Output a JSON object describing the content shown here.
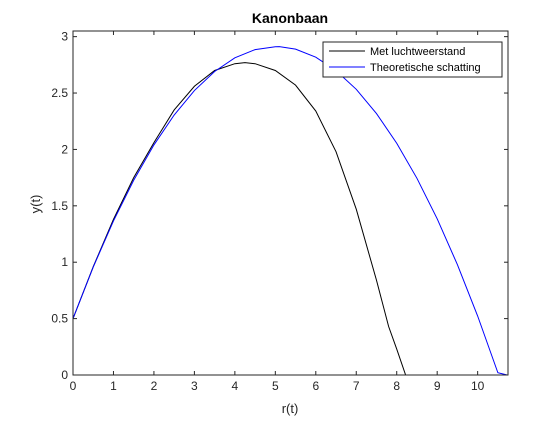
{
  "chart_data": {
    "type": "line",
    "title": "Kanonbaan",
    "xlabel": "r(t)",
    "ylabel": "y(t)",
    "xlim": [
      0,
      10.75
    ],
    "ylim": [
      0,
      3.05
    ],
    "xticks": [
      0,
      1,
      2,
      3,
      4,
      5,
      6,
      7,
      8,
      9,
      10
    ],
    "xtick_labels": [
      "0",
      "1",
      "2",
      "3",
      "4",
      "5",
      "6",
      "7",
      "8",
      "9",
      "10"
    ],
    "yticks": [
      0,
      0.5,
      1,
      1.5,
      2,
      2.5,
      3
    ],
    "ytick_labels": [
      "0",
      "0.5",
      "1",
      "1.5",
      "2",
      "2.5",
      "3"
    ],
    "grid": false,
    "legend_position": "top-right",
    "series": [
      {
        "name": "Met luchtweerstand",
        "color": "#000000",
        "x": [
          0,
          0.5,
          1,
          1.5,
          2,
          2.5,
          3,
          3.5,
          4,
          4.25,
          4.5,
          5,
          5.5,
          6,
          6.5,
          7,
          7.5,
          7.8,
          8,
          8.22
        ],
        "y": [
          0.5,
          0.96,
          1.38,
          1.75,
          2.06,
          2.35,
          2.56,
          2.7,
          2.76,
          2.77,
          2.76,
          2.7,
          2.57,
          2.34,
          1.98,
          1.47,
          0.84,
          0.43,
          0.23,
          0
        ]
      },
      {
        "name": "Theoretische schatting",
        "color": "#0000ff",
        "x": [
          0,
          0.5,
          1,
          1.5,
          2,
          2.5,
          3,
          3.5,
          4,
          4.5,
          5,
          5.1,
          5.5,
          6,
          6.5,
          7,
          7.5,
          8,
          8.5,
          9,
          9.5,
          10,
          10.5,
          10.73
        ],
        "y": [
          0.5,
          0.957,
          1.366,
          1.727,
          2.04,
          2.305,
          2.522,
          2.691,
          2.812,
          2.885,
          2.91,
          2.911,
          2.889,
          2.818,
          2.699,
          2.533,
          2.318,
          2.055,
          1.744,
          1.385,
          0.978,
          0.523,
          0.02,
          0
        ]
      }
    ]
  }
}
